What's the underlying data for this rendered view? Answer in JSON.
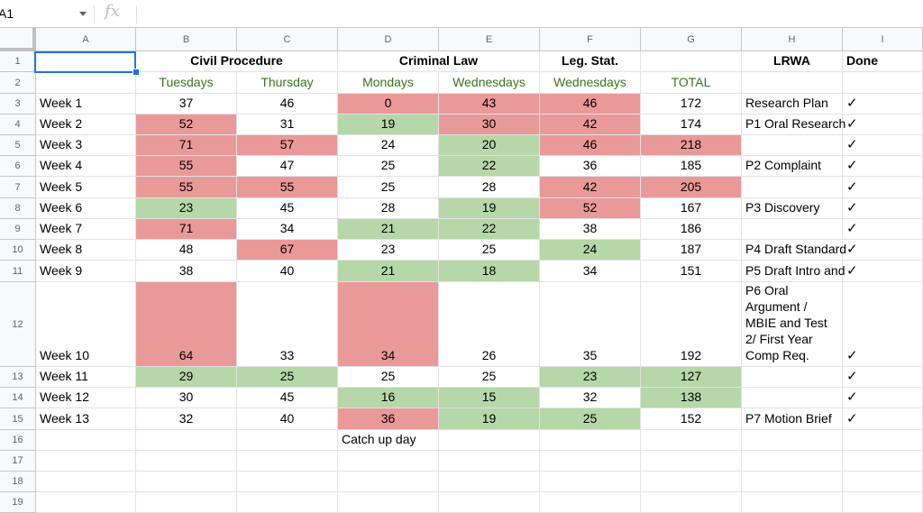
{
  "name_box": "A1",
  "formula_icon": "fx-icon",
  "columns": [
    "A",
    "B",
    "C",
    "D",
    "E",
    "F",
    "G",
    "H",
    "I"
  ],
  "header_row1": {
    "civil": "Civil Procedure",
    "criminal": "Criminal Law",
    "leg": "Leg. Stat.",
    "lrwa": "LRWA",
    "done": "Done"
  },
  "header_row2": {
    "b": "Tuesdays",
    "c": "Thursday",
    "d": "Mondays",
    "e": "Wednesdays",
    "f": "Wednesdays",
    "g": "TOTAL"
  },
  "rows": [
    {
      "num": "3",
      "a": "Week 1",
      "b": "37",
      "c": "46",
      "d": "0",
      "e": "43",
      "f": "46",
      "g": "172",
      "h": "Research Plan",
      "i": "✓"
    },
    {
      "num": "4",
      "a": "Week 2",
      "b": "52",
      "c": "31",
      "d": "19",
      "e": "30",
      "f": "42",
      "g": "174",
      "h": "P1 Oral Research",
      "i": "✓"
    },
    {
      "num": "5",
      "a": "Week 3",
      "b": "71",
      "c": "57",
      "d": "24",
      "e": "20",
      "f": "46",
      "g": "218",
      "h": "",
      "i": "✓"
    },
    {
      "num": "6",
      "a": "Week 4",
      "b": "55",
      "c": "47",
      "d": "25",
      "e": "22",
      "f": "36",
      "g": "185",
      "h": "P2 Complaint",
      "i": "✓"
    },
    {
      "num": "7",
      "a": "Week 5",
      "b": "55",
      "c": "55",
      "d": "25",
      "e": "28",
      "f": "42",
      "g": "205",
      "h": "",
      "i": "✓"
    },
    {
      "num": "8",
      "a": "Week 6",
      "b": "23",
      "c": "45",
      "d": "28",
      "e": "19",
      "f": "52",
      "g": "167",
      "h": "P3 Discovery",
      "i": "✓"
    },
    {
      "num": "9",
      "a": "Week 7",
      "b": "71",
      "c": "34",
      "d": "21",
      "e": "22",
      "f": "38",
      "g": "186",
      "h": "",
      "i": "✓"
    },
    {
      "num": "10",
      "a": "Week 8",
      "b": "48",
      "c": "67",
      "d": "23",
      "e": "25",
      "f": "24",
      "g": "187",
      "h": "P4 Draft Standard",
      "i": "✓"
    },
    {
      "num": "11",
      "a": "Week 9",
      "b": "38",
      "c": "40",
      "d": "21",
      "e": "18",
      "f": "34",
      "g": "151",
      "h": "P5 Draft Intro and",
      "i": "✓"
    },
    {
      "num": "12",
      "a": "Week 10",
      "b": "64",
      "c": "33",
      "d": "34",
      "e": "26",
      "f": "35",
      "g": "192",
      "h": "P6 Oral Argument / MBIE and Test 2/ First Year Comp Req.",
      "i": "✓"
    },
    {
      "num": "13",
      "a": "Week 11",
      "b": "29",
      "c": "25",
      "d": "25",
      "e": "25",
      "f": "23",
      "g": "127",
      "h": "",
      "i": "✓"
    },
    {
      "num": "14",
      "a": "Week 12",
      "b": "30",
      "c": "45",
      "d": "16",
      "e": "15",
      "f": "32",
      "g": "138",
      "h": "",
      "i": "✓"
    },
    {
      "num": "15",
      "a": "Week 13",
      "b": "32",
      "c": "40",
      "d": "36",
      "e": "19",
      "f": "25",
      "g": "152",
      "h": "P7 Motion Brief",
      "i": "✓"
    }
  ],
  "row16": {
    "num": "16",
    "d": "Catch up day"
  },
  "empty_rows": [
    "17",
    "18",
    "19"
  ],
  "row_nums_top": [
    "1",
    "2"
  ],
  "colors": {
    "red": "#ea9999",
    "green": "#b6d7a8",
    "green_text": "#38761d",
    "selection": "#1a73e8"
  }
}
